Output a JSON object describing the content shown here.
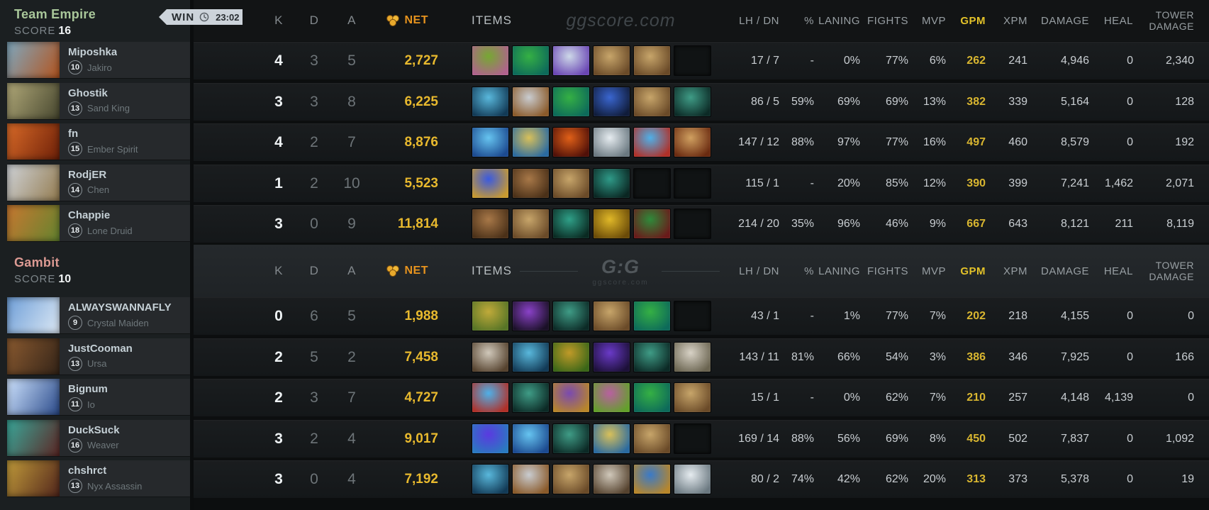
{
  "labels": {
    "score": "SCORE"
  },
  "badge": {
    "result": "WIN",
    "time": "23:02"
  },
  "header": {
    "k": "K",
    "d": "D",
    "a": "A",
    "net": "NET",
    "items": "ITEMS",
    "lh_dn": "LH / DN",
    "pct": "%",
    "laning": "LANING",
    "fights": "FIGHTS",
    "mvp": "MVP",
    "gpm": "GPM",
    "xpm": "XPM",
    "damage": "DAMAGE",
    "heal": "HEAL",
    "tower_line1": "TOWER",
    "tower_line2": "DAMAGE",
    "watermark": "ggscore.com",
    "logo": "G:G",
    "logo_sub": "ggscore.com"
  },
  "colors": {
    "net_header": "#e8941e",
    "net_value": "#e8b92e",
    "gpm": "#d9b630",
    "win_badge": "#ccd3da",
    "empire": "#a9c79a",
    "gambit": "#dc9a93"
  },
  "teams": [
    {
      "name": "Team Empire",
      "score": "16",
      "name_color": "#a9c79a",
      "players": [
        {
          "nick": "Miposhka",
          "level": "10",
          "hero": "Jakiro",
          "portrait": [
            "#7fa8bf",
            "#b3541e"
          ]
        },
        {
          "nick": "Ghostik",
          "level": "13",
          "hero": "Sand King",
          "portrait": [
            "#b0a878",
            "#47472f"
          ]
        },
        {
          "nick": "fn",
          "level": "15",
          "hero": "Ember Spirit",
          "portrait": [
            "#d86a28",
            "#6e2008"
          ]
        },
        {
          "nick": "RodjER",
          "level": "14",
          "hero": "Chen",
          "portrait": [
            "#cfd3d8",
            "#947c50"
          ]
        },
        {
          "nick": "Chappie",
          "level": "18",
          "hero": "Lone Druid",
          "portrait": [
            "#c87830",
            "#64842f"
          ]
        }
      ],
      "rows": [
        {
          "k": "4",
          "d": "3",
          "a": "5",
          "net": "2,727",
          "items": [
            {
              "n": "spirit-vessel",
              "c": [
                "#76a832",
                "#b0628e"
              ]
            },
            {
              "n": "tranquil-boots",
              "c": [
                "#35b044",
                "#0d6a5a"
              ]
            },
            {
              "n": "glimmer-cape",
              "c": [
                "#cdd8e8",
                "#6a46b4"
              ]
            },
            {
              "n": "tp-scroll",
              "c": [
                "#c7a56a",
                "#6a4a28"
              ]
            },
            {
              "n": "tp-scroll",
              "c": [
                "#c7a56a",
                "#6a4a28"
              ]
            },
            {
              "n": "empty",
              "c": [
                "#15181a",
                "#0c0e10"
              ]
            }
          ],
          "lh_dn": "17 / 7",
          "pct": "-",
          "laning": "0%",
          "fights": "77%",
          "mvp": "6%",
          "gpm": "262",
          "xpm": "241",
          "damage": "4,946",
          "heal": "0",
          "tower": "2,340"
        },
        {
          "k": "3",
          "d": "3",
          "a": "8",
          "net": "6,225",
          "items": [
            {
              "n": "blue-blade",
              "c": [
                "#59b8dc",
                "#123a56"
              ]
            },
            {
              "n": "quelling-blade",
              "c": [
                "#c9ccd0",
                "#8a5a2a"
              ]
            },
            {
              "n": "tranquil-boots",
              "c": [
                "#35b044",
                "#0d6a5a"
              ]
            },
            {
              "n": "blue-orb",
              "c": [
                "#3a66d0",
                "#101c3a"
              ]
            },
            {
              "n": "tp-scroll",
              "c": [
                "#c7a56a",
                "#6a4a28"
              ]
            },
            {
              "n": "magic-stick",
              "c": [
                "#3f9c86",
                "#0c2a26"
              ]
            }
          ],
          "lh_dn": "86 / 5",
          "pct": "59%",
          "laning": "69%",
          "fights": "69%",
          "mvp": "13%",
          "gpm": "382",
          "xpm": "339",
          "damage": "5,164",
          "heal": "0",
          "tower": "128"
        },
        {
          "k": "4",
          "d": "2",
          "a": "7",
          "net": "8,876",
          "items": [
            {
              "n": "lightning-orb",
              "c": [
                "#66c4f0",
                "#1c4a90"
              ]
            },
            {
              "n": "ring-of-aquila",
              "c": [
                "#d8c05a",
                "#2a6aa0"
              ]
            },
            {
              "n": "flame-item",
              "c": [
                "#e06018",
                "#501008"
              ]
            },
            {
              "n": "ghost-swirl",
              "c": [
                "#e6ecf0",
                "#6a7880"
              ]
            },
            {
              "n": "bottle",
              "c": [
                "#4fb0e8",
                "#b03028"
              ]
            },
            {
              "n": "orange-boot",
              "c": [
                "#d0a060",
                "#6a2a10"
              ]
            }
          ],
          "lh_dn": "147 / 12",
          "pct": "88%",
          "laning": "97%",
          "fights": "77%",
          "mvp": "16%",
          "gpm": "497",
          "xpm": "460",
          "damage": "8,579",
          "heal": "0",
          "tower": "192"
        },
        {
          "k": "1",
          "d": "2",
          "a": "10",
          "net": "5,523",
          "items": [
            {
              "n": "glowing-dagger",
              "c": [
                "#3a5ae0",
                "#c89a30"
              ]
            },
            {
              "n": "brown-boots",
              "c": [
                "#a87848",
                "#4a3018"
              ]
            },
            {
              "n": "tp-scroll",
              "c": [
                "#c7a56a",
                "#6a4a28"
              ]
            },
            {
              "n": "magic-wand",
              "c": [
                "#2f9a88",
                "#0a2622"
              ]
            },
            {
              "n": "empty",
              "c": [
                "#15181a",
                "#0c0e10"
              ]
            },
            {
              "n": "empty",
              "c": [
                "#15181a",
                "#0c0e10"
              ]
            }
          ],
          "lh_dn": "115 / 1",
          "pct": "-",
          "laning": "20%",
          "fights": "85%",
          "mvp": "12%",
          "gpm": "390",
          "xpm": "399",
          "damage": "7,241",
          "heal": "1,462",
          "tower": "2,071"
        },
        {
          "k": "3",
          "d": "0",
          "a": "9",
          "net": "11,814",
          "items": [
            {
              "n": "brown-boots",
              "c": [
                "#a87848",
                "#4a3018"
              ]
            },
            {
              "n": "tp-scroll",
              "c": [
                "#c7a56a",
                "#6a4a28"
              ]
            },
            {
              "n": "green-quill",
              "c": [
                "#2fa088",
                "#0a2a22"
              ]
            },
            {
              "n": "hand-of-midas",
              "c": [
                "#e0b828",
                "#6a4a08"
              ]
            },
            {
              "n": "helm-of-dominator",
              "c": [
                "#2f8a3a",
                "#6a1a1a"
              ]
            },
            {
              "n": "empty",
              "c": [
                "#15181a",
                "#0c0e10"
              ]
            }
          ],
          "lh_dn": "214 / 20",
          "pct": "35%",
          "laning": "96%",
          "fights": "46%",
          "mvp": "9%",
          "gpm": "667",
          "xpm": "643",
          "damage": "8,121",
          "heal": "211",
          "tower": "8,119"
        }
      ]
    },
    {
      "name": "Gambit",
      "score": "10",
      "name_color": "#dc9a93",
      "players": [
        {
          "nick": "ALWAYSWANNAFLY",
          "level": "9",
          "hero": "Crystal Maiden",
          "portrait": [
            "#6f9fd8",
            "#dce8f4"
          ]
        },
        {
          "nick": "JustCooman",
          "level": "13",
          "hero": "Ursa",
          "portrait": [
            "#8a5a30",
            "#342418"
          ]
        },
        {
          "nick": "Bignum",
          "level": "11",
          "hero": "Io",
          "portrait": [
            "#cfe4ff",
            "#2a4a8a"
          ]
        },
        {
          "nick": "DuckSuck",
          "level": "16",
          "hero": "Weaver",
          "portrait": [
            "#3aa89a",
            "#5c2624"
          ]
        },
        {
          "nick": "chshrct",
          "level": "13",
          "hero": "Nyx Assassin",
          "portrait": [
            "#c09a3a",
            "#52261c"
          ]
        }
      ],
      "rows": [
        {
          "k": "0",
          "d": "6",
          "a": "5",
          "net": "1,988",
          "items": [
            {
              "n": "observer-ward",
              "c": [
                "#c0aa3a",
                "#567426"
              ]
            },
            {
              "n": "dust-of-appearance",
              "c": [
                "#8a42c8",
                "#1a1026"
              ]
            },
            {
              "n": "magic-stick",
              "c": [
                "#3f9c86",
                "#0c2a26"
              ]
            },
            {
              "n": "tp-scroll",
              "c": [
                "#c7a56a",
                "#6a4a28"
              ]
            },
            {
              "n": "tranquil-boots",
              "c": [
                "#35b044",
                "#0d6a5a"
              ]
            },
            {
              "n": "empty",
              "c": [
                "#15181a",
                "#0c0e10"
              ]
            }
          ],
          "lh_dn": "43 / 1",
          "pct": "-",
          "laning": "1%",
          "fights": "77%",
          "mvp": "7%",
          "gpm": "202",
          "xpm": "218",
          "damage": "4,155",
          "heal": "0",
          "tower": "0"
        },
        {
          "k": "2",
          "d": "5",
          "a": "2",
          "net": "7,458",
          "items": [
            {
              "n": "poor-mans-shield",
              "c": [
                "#d0c8ba",
                "#55422e"
              ]
            },
            {
              "n": "blue-blade",
              "c": [
                "#59b8dc",
                "#123a56"
              ]
            },
            {
              "n": "urn",
              "c": [
                "#c09a28",
                "#3a6618"
              ]
            },
            {
              "n": "purple-glove",
              "c": [
                "#6a3ac8",
                "#1c1038"
              ]
            },
            {
              "n": "magic-stick",
              "c": [
                "#3f9c86",
                "#0c2a26"
              ]
            },
            {
              "n": "white-hammer",
              "c": [
                "#d8d2c6",
                "#6a6450"
              ]
            }
          ],
          "lh_dn": "143 / 11",
          "pct": "81%",
          "laning": "66%",
          "fights": "54%",
          "mvp": "3%",
          "gpm": "386",
          "xpm": "346",
          "damage": "7,925",
          "heal": "0",
          "tower": "166"
        },
        {
          "k": "2",
          "d": "3",
          "a": "7",
          "net": "4,727",
          "items": [
            {
              "n": "bottle",
              "c": [
                "#4fb0e8",
                "#b03028"
              ]
            },
            {
              "n": "magic-stick",
              "c": [
                "#3f9c86",
                "#0c2a26"
              ]
            },
            {
              "n": "cloaked-figure",
              "c": [
                "#7a4ab0",
                "#b8862a"
              ]
            },
            {
              "n": "pink-blob",
              "c": [
                "#b860a0",
                "#62a02a"
              ]
            },
            {
              "n": "tranquil-boots",
              "c": [
                "#35b044",
                "#0d6a5a"
              ]
            },
            {
              "n": "tp-scroll",
              "c": [
                "#c7a56a",
                "#6a4a28"
              ]
            }
          ],
          "lh_dn": "15 / 1",
          "pct": "-",
          "laning": "0%",
          "fights": "62%",
          "mvp": "7%",
          "gpm": "210",
          "xpm": "257",
          "damage": "4,148",
          "heal": "4,139",
          "tower": "0"
        },
        {
          "k": "3",
          "d": "2",
          "a": "4",
          "net": "9,017",
          "items": [
            {
              "n": "void-orb",
              "c": [
                "#5a3ae0",
                "#2a7ac0"
              ]
            },
            {
              "n": "lightning-orb",
              "c": [
                "#66c4f0",
                "#1c4a90"
              ]
            },
            {
              "n": "magic-stick",
              "c": [
                "#3f9c86",
                "#0c2a26"
              ]
            },
            {
              "n": "ring-of-aquila",
              "c": [
                "#d8c05a",
                "#2a6aa0"
              ]
            },
            {
              "n": "tp-scroll",
              "c": [
                "#c7a56a",
                "#6a4a28"
              ]
            },
            {
              "n": "empty",
              "c": [
                "#15181a",
                "#0c0e10"
              ]
            }
          ],
          "lh_dn": "169 / 14",
          "pct": "88%",
          "laning": "56%",
          "fights": "69%",
          "mvp": "8%",
          "gpm": "450",
          "xpm": "502",
          "damage": "7,837",
          "heal": "0",
          "tower": "1,092"
        },
        {
          "k": "3",
          "d": "0",
          "a": "4",
          "net": "7,192",
          "items": [
            {
              "n": "blue-blade",
              "c": [
                "#59b8dc",
                "#123a56"
              ]
            },
            {
              "n": "quelling-blade",
              "c": [
                "#c9ccd0",
                "#8a5a2a"
              ]
            },
            {
              "n": "tp-scroll",
              "c": [
                "#c7a56a",
                "#6a4a28"
              ]
            },
            {
              "n": "poor-mans-shield",
              "c": [
                "#d0c8ba",
                "#55422e"
              ]
            },
            {
              "n": "blue-gold-vessel",
              "c": [
                "#3a7ac8",
                "#b8862a"
              ]
            },
            {
              "n": "ghost-swirl",
              "c": [
                "#e6ecf0",
                "#6a7880"
              ]
            }
          ],
          "lh_dn": "80 / 2",
          "pct": "74%",
          "laning": "42%",
          "fights": "62%",
          "mvp": "20%",
          "gpm": "313",
          "xpm": "373",
          "damage": "5,378",
          "heal": "0",
          "tower": "19"
        }
      ]
    }
  ]
}
